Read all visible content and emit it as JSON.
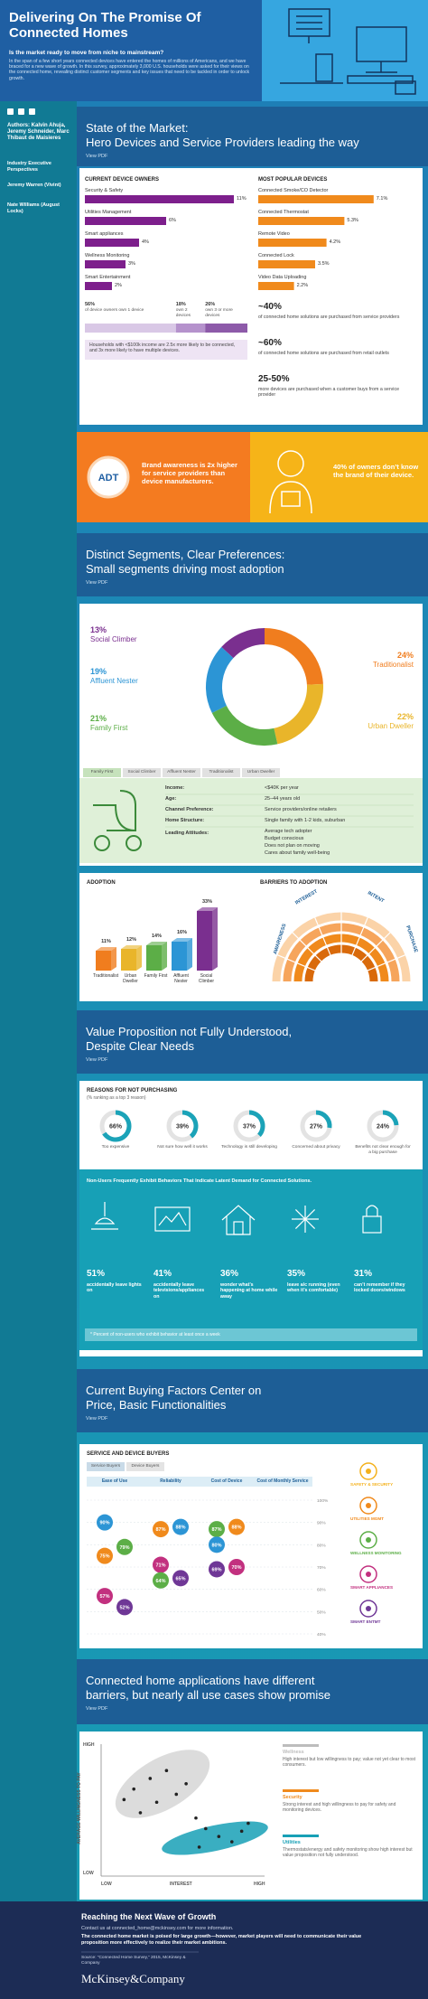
{
  "header": {
    "title": "Delivering On The Promise Of Connected Homes",
    "subtitle": "Is the market ready to move from niche to mainstream?",
    "intro": "In the span of a few short years connected devices have entered the homes of millions of Americans, and we have braced for a new wave of growth. In this survey, approximately 3,000 U.S. households were asked for their views on the connected home, revealing distinct customer segments and key issues that need to be tackled in order to unlock growth."
  },
  "sidebar": {
    "authors": "Authors: Kalvin Ahuja, Jeremy Schneider, Marc Thibaut de Maisieres",
    "perspectives": "Industry Executive Perspectives",
    "experts": [
      "Jeremy Warren (Vivint)",
      "Nate Williams (August Locks)"
    ]
  },
  "market": {
    "heading": [
      "State of the Market:",
      "Hero Devices and Service Providers leading the way"
    ],
    "pdf": "View PDF",
    "owners": {
      "title": "CURRENT DEVICE OWNERS",
      "color": "#7d1f8c",
      "items": [
        {
          "label": "Security & Safety",
          "value": 11,
          "value_label": "11%"
        },
        {
          "label": "Utilities Management",
          "value": 6,
          "value_label": "6%"
        },
        {
          "label": "Smart appliances",
          "value": 4,
          "value_label": "4%"
        },
        {
          "label": "Wellness Monitoring",
          "value": 3,
          "value_label": "3%"
        },
        {
          "label": "Smart Entertainment",
          "value": 2,
          "value_label": "2%"
        }
      ]
    },
    "popular": {
      "title": "MOST POPULAR DEVICES",
      "color": "#f08a1c",
      "items": [
        {
          "label": "Connected Smoke/CO Detector",
          "value": 7.1,
          "value_label": "7.1%"
        },
        {
          "label": "Connected Thermostat",
          "value": 5.3,
          "value_label": "5.3%"
        },
        {
          "label": "Remote Video",
          "value": 4.2,
          "value_label": "4.2%"
        },
        {
          "label": "Connected Lock",
          "value": 3.5,
          "value_label": "3.5%"
        },
        {
          "label": "Video Data Uploading",
          "value": 2.2,
          "value_label": "2.2%"
        }
      ]
    },
    "device_count": [
      {
        "value": 56,
        "label": "56%",
        "text": "of device owners own 1 device",
        "color": "#d9c8e6"
      },
      {
        "value": 18,
        "label": "18%",
        "text": "own 2 devices",
        "color": "#b592cc"
      },
      {
        "value": 26,
        "label": "26%",
        "text": "own 3 or more devices",
        "color": "#8d5aa9"
      }
    ],
    "note": "Households with <$100k income are 2.5x more likely to be connected, and 3x more likely to have multiple devices.",
    "stats": [
      {
        "value": "~40%",
        "text": "of connected home solutions are purchased from service providers"
      },
      {
        "value": "~60%",
        "text": "of connected home solutions are purchased from retail outlets"
      },
      {
        "value": "25-50%",
        "text": "more devices are purchased when a customer buys from a service provider"
      }
    ]
  },
  "brand": {
    "logo": "ADT",
    "awareness": "Brand awareness is 2x higher for service providers than device manufacturers.",
    "unknown": "40% of owners don’t know the brand of their device."
  },
  "segments": {
    "heading": [
      "Distinct Segments, Clear Preferences:",
      "Small segments driving most adoption"
    ],
    "pdf": "View PDF",
    "groups": [
      {
        "name": "Traditionalist",
        "value": 24,
        "label": "24%",
        "color": "#f07d1e"
      },
      {
        "name": "Urban Dweller",
        "value": 22,
        "label": "22%",
        "color": "#e9b52a"
      },
      {
        "name": "Family First",
        "value": 21,
        "label": "21%",
        "color": "#5cae47"
      },
      {
        "name": "Affluent Nester",
        "value": 19,
        "label": "19%",
        "color": "#2c95d5"
      },
      {
        "name": "Social Climber",
        "value": 13,
        "label": "13%",
        "color": "#7a2f8f"
      }
    ],
    "tabs": [
      "Family First",
      "Social Climber",
      "Affluent Nester",
      "Traditionalist",
      "Urban Dweller"
    ],
    "profile": [
      {
        "key": "Income:",
        "value": "<$40K per year"
      },
      {
        "key": "Age:",
        "value": "25–44 years old"
      },
      {
        "key": "Channel Preference:",
        "value": "Service providers/online retailers"
      },
      {
        "key": "Home Structure:",
        "value": "Single family with 1-2 kids, suburban"
      }
    ],
    "attitudes": {
      "key": "Leading Attitudes:",
      "values": [
        "Average tech adopter",
        "Budget conscious",
        "Does not plan on moving",
        "Cares about family well-being"
      ]
    },
    "adoption": {
      "title": "ADOPTION",
      "items": [
        {
          "name": "Traditionalist",
          "value": 11,
          "label": "11%",
          "color": "#f07d1e"
        },
        {
          "name": "Urban Dweller",
          "value": 12,
          "label": "12%",
          "color": "#e9b52a"
        },
        {
          "name": "Family First",
          "value": 14,
          "label": "14%",
          "color": "#5cae47"
        },
        {
          "name": "Affluent Nester",
          "value": 16,
          "label": "16%",
          "color": "#2c95d5"
        },
        {
          "name": "Social Climber",
          "value": 33,
          "label": "33%",
          "color": "#7a2f8f"
        }
      ]
    },
    "barriers": {
      "title": "BARRIERS TO ADOPTION",
      "stages": [
        "AWARENESS",
        "INTEREST",
        "INTENT",
        "PURCHASE"
      ]
    }
  },
  "value": {
    "heading": [
      "Value Proposition not Fully Understood,",
      "Despite Clear Needs"
    ],
    "pdf": "View PDF",
    "reasons": {
      "title": "REASONS FOR NOT PURCHASING",
      "subtitle": "(% ranking as a top 3 reason)",
      "color": "#1ba3b8",
      "items": [
        {
          "value": 66,
          "label": "66%",
          "text": "Too expensive"
        },
        {
          "value": 39,
          "label": "39%",
          "text": "Not sure how well it works"
        },
        {
          "value": 37,
          "label": "37%",
          "text": "Technology is still developing"
        },
        {
          "value": 27,
          "label": "27%",
          "text": "Concerned about privacy"
        },
        {
          "value": 24,
          "label": "24%",
          "text": "Benefits not clear enough for a big purchase"
        }
      ]
    },
    "behaviors": {
      "title": "Non-Users Frequently Exhibit Behaviors That Indicate Latent Demand for Connected Solutions.",
      "items": [
        {
          "label": "51%",
          "text": "accidentally leave lights on"
        },
        {
          "label": "41%",
          "text": "accidentally leave televisions/appliances on"
        },
        {
          "label": "36%",
          "text": "wonder what’s happening at home while away"
        },
        {
          "label": "35%",
          "text": "leave a/c running (even when it’s comfortable)"
        },
        {
          "label": "31%",
          "text": "can’t remember if they locked doors/windows"
        }
      ],
      "footnote": "* Percent of non-users who exhibit behavior at least once a week"
    }
  },
  "buying": {
    "heading": [
      "Current Buying Factors Center on",
      "Price, Basic Functionalities"
    ],
    "pdf": "View PDF",
    "title": "SERVICE AND DEVICE BUYERS",
    "tabs": [
      "Service Buyers",
      "Device Buyers"
    ],
    "columns": [
      "Ease of Use",
      "Reliability",
      "Cost of Device",
      "Cost of Monthly Service"
    ],
    "ylim": [
      40,
      100
    ],
    "yticks": [
      {
        "value": 100,
        "label": "100%"
      },
      {
        "value": 90,
        "label": "90%"
      },
      {
        "value": 80,
        "label": "80%"
      },
      {
        "value": 70,
        "label": "70%"
      },
      {
        "value": 60,
        "label": "60%"
      },
      {
        "value": 50,
        "label": "50%"
      },
      {
        "value": 40,
        "label": "40%"
      }
    ],
    "bubbles": [
      [
        {
          "value": 90,
          "label": "90%",
          "color": "#2c95d5"
        },
        {
          "value": 79,
          "label": "79%",
          "color": "#5cae47"
        },
        {
          "value": 75,
          "label": "75%",
          "color": "#f08a1c"
        },
        {
          "value": 52,
          "label": "52%",
          "color": "#6f3796"
        },
        {
          "value": 57,
          "label": "57%",
          "color": "#c2307f"
        }
      ],
      [
        {
          "value": 87,
          "label": "87%",
          "color": "#f08a1c"
        },
        {
          "value": 88,
          "label": "88%",
          "color": "#2c95d5"
        },
        {
          "value": 71,
          "label": "71%",
          "color": "#c2307f"
        },
        {
          "value": 65,
          "label": "65%",
          "color": "#6f3796"
        },
        {
          "value": 64,
          "label": "64%",
          "color": "#5cae47"
        }
      ],
      [
        {
          "value": 87,
          "label": "87%",
          "color": "#5cae47"
        },
        {
          "value": 88,
          "label": "88%",
          "color": "#f08a1c"
        },
        {
          "value": 80,
          "label": "80%",
          "color": "#2c95d5"
        },
        {
          "value": 70,
          "label": "70%",
          "color": "#c2307f"
        },
        {
          "value": 69,
          "label": "69%",
          "color": "#6f3796"
        }
      ]
    ],
    "legend": [
      {
        "name": "SAFETY & SECURITY",
        "color": "#f4b11c"
      },
      {
        "name": "UTILITIES MGMT",
        "color": "#f08a1c"
      },
      {
        "name": "WELLNESS MONITORING",
        "color": "#5cae47"
      },
      {
        "name": "SMART APPLIANCES",
        "color": "#c2307f"
      },
      {
        "name": "SMART ENTMT",
        "color": "#6f3796"
      }
    ]
  },
  "opportunity": {
    "heading": [
      "Connected home applications have different",
      "barriers, but nearly all use cases show promise"
    ],
    "pdf": "View PDF",
    "y_label": "AVERAGE WILLINGNESS TO PAY",
    "x_label": "INTEREST",
    "x_ends": [
      "LOW",
      "HIGH"
    ],
    "y_ends": [
      "LOW",
      "HIGH"
    ],
    "xlim": [
      0,
      100
    ],
    "ylim": [
      0,
      100
    ],
    "x": [
      14,
      20,
      24,
      30,
      34,
      40,
      46,
      52,
      58,
      64,
      72,
      80,
      86,
      90,
      60
    ],
    "y": [
      58,
      66,
      48,
      74,
      56,
      80,
      62,
      70,
      44,
      36,
      30,
      26,
      34,
      40,
      22
    ],
    "notes": [
      {
        "title": "Wellness",
        "text": "High interest but low willingness to pay; value not yet clear to most consumers.",
        "color": "#bdbdbd"
      },
      {
        "title": "Security",
        "text": "Strong interest and high willingness to pay for safety and monitoring devices.",
        "color": "#f08a1c"
      },
      {
        "title": "Utilities",
        "text": "Thermostats/energy and safety monitoring show high interest but value proposition not fully understood.",
        "color": "#17a0b6"
      }
    ]
  },
  "footer": {
    "title": "Reaching the Next Wave of Growth",
    "contact": "Contact us at connected_home@mckinsey.com for more information.",
    "body": "The connected home market is poised for large growth—however, market players will need to communicate their value proposition more effectively to realize their market ambitions.",
    "source": "Source: “Connected Home Survey,” 2015, McKinsey & Company",
    "brand": "McKinsey&Company"
  }
}
